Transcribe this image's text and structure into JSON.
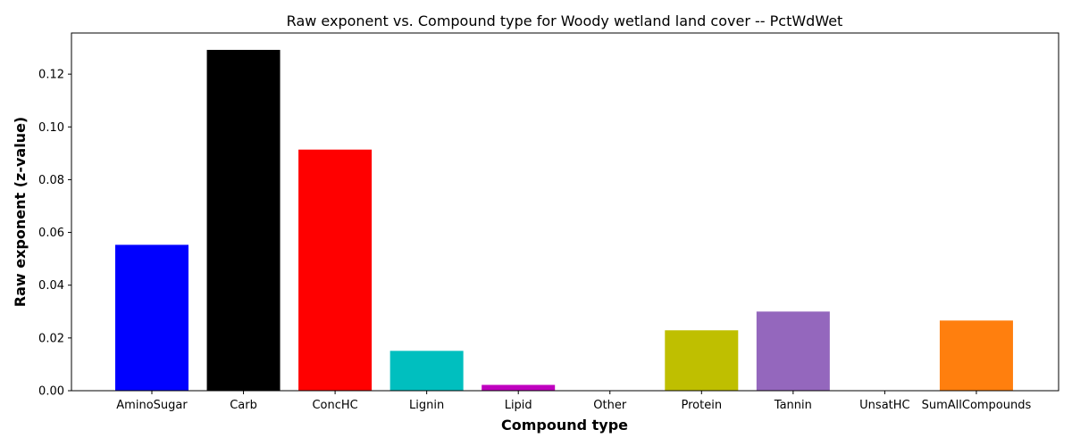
{
  "chart_data": {
    "type": "bar",
    "title": "Raw exponent vs. Compound type for Woody wetland land cover -- PctWdWet",
    "xlabel": "Compound type",
    "ylabel": "Raw exponent (z-value)",
    "categories": [
      "AminoSugar",
      "Carb",
      "ConcHC",
      "Lignin",
      "Lipid",
      "Other",
      "Protein",
      "Tannin",
      "UnsatHC",
      "SumAllCompounds"
    ],
    "values": [
      0.0553,
      0.1292,
      0.0914,
      0.0151,
      0.0022,
      0.0,
      0.0229,
      0.03,
      0.0,
      0.0266
    ],
    "colors": [
      "#0000ff",
      "#000000",
      "#ff0000",
      "#00bfbf",
      "#bf00bf",
      "#1f77b4",
      "#bfbf00",
      "#9467bd",
      "#1f77b4",
      "#ff7f0e"
    ],
    "ylim": [
      0,
      0.1356
    ],
    "yticks": [
      0.0,
      0.02,
      0.04,
      0.06,
      0.08,
      0.1,
      0.12
    ],
    "ytick_labels": [
      "0.00",
      "0.02",
      "0.04",
      "0.06",
      "0.08",
      "0.10",
      "0.12"
    ],
    "grid": false,
    "legend": false
  }
}
